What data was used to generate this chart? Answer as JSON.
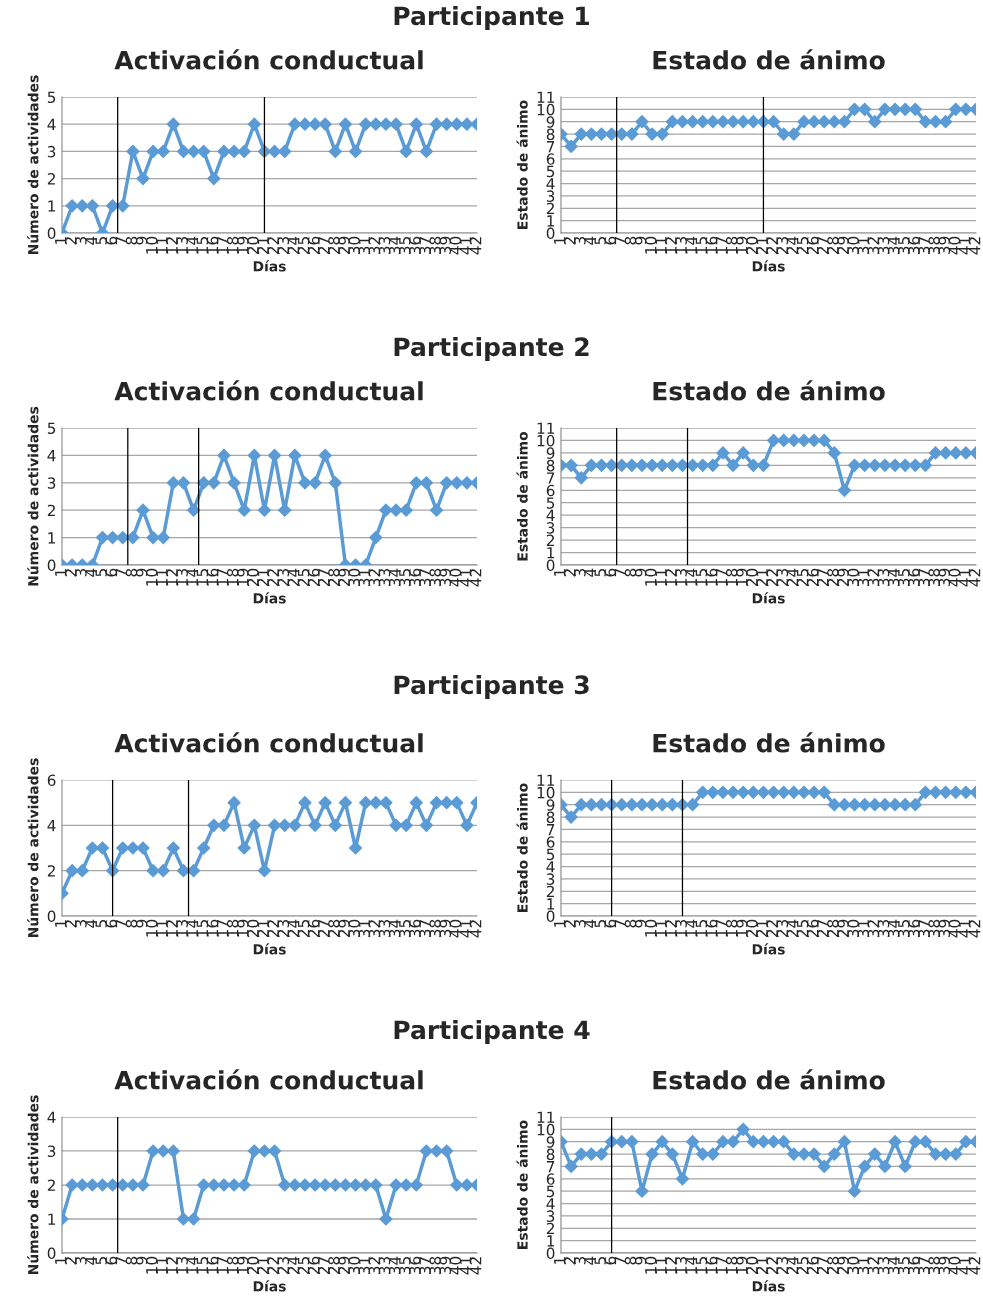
{
  "chart_data": [
    {
      "type": "line",
      "annotations": [
        "Participante 1"
      ],
      "title": "Activación conductual",
      "xlabel": "Días",
      "ylabel": "Número de actividades",
      "x": [
        1,
        2,
        3,
        4,
        5,
        6,
        7,
        8,
        9,
        10,
        11,
        12,
        13,
        14,
        15,
        16,
        17,
        18,
        19,
        20,
        21,
        22,
        23,
        24,
        25,
        26,
        27,
        28,
        29,
        30,
        31,
        32,
        33,
        34,
        35,
        36,
        37,
        38,
        39,
        40,
        41,
        42
      ],
      "xlim": [
        1,
        42
      ],
      "xticks": [
        1,
        2,
        3,
        4,
        5,
        6,
        7,
        8,
        9,
        10,
        11,
        12,
        13,
        14,
        15,
        16,
        17,
        18,
        19,
        20,
        21,
        22,
        23,
        24,
        25,
        26,
        27,
        28,
        29,
        30,
        31,
        32,
        33,
        34,
        35,
        36,
        37,
        38,
        39,
        40,
        41,
        42
      ],
      "ylim": [
        0,
        5
      ],
      "yticks": [
        0,
        1,
        2,
        3,
        4,
        5
      ],
      "grid": "y",
      "marker": "diamond",
      "line_style": "solid",
      "series": [
        {
          "color": "#5b9bd5",
          "values": [
            0,
            1,
            1,
            1,
            0,
            1,
            1,
            3,
            2,
            3,
            3,
            4,
            3,
            3,
            3,
            2,
            3,
            3,
            3,
            4,
            3,
            3,
            3,
            4,
            4,
            4,
            4,
            3,
            4,
            3,
            4,
            4,
            4,
            4,
            3,
            4,
            3,
            4,
            4,
            4,
            4,
            4
          ]
        }
      ],
      "ref_lines": [
        {
          "axis": "x",
          "value": 6.5,
          "color": "#000000"
        },
        {
          "axis": "x",
          "value": 21,
          "color": "#000000"
        }
      ]
    },
    {
      "type": "line",
      "title": "Estado de ánimo",
      "xlabel": "Días",
      "ylabel": "Estado de ánimo",
      "x": [
        1,
        2,
        3,
        4,
        5,
        6,
        7,
        8,
        9,
        10,
        11,
        12,
        13,
        14,
        15,
        16,
        17,
        18,
        19,
        20,
        21,
        22,
        23,
        24,
        25,
        26,
        27,
        28,
        29,
        30,
        31,
        32,
        33,
        34,
        35,
        36,
        37,
        38,
        39,
        40,
        41,
        42
      ],
      "xlim": [
        1,
        42
      ],
      "xticks": [
        1,
        2,
        3,
        4,
        5,
        6,
        7,
        8,
        9,
        10,
        11,
        12,
        13,
        14,
        15,
        16,
        17,
        18,
        19,
        20,
        21,
        22,
        23,
        24,
        25,
        26,
        27,
        28,
        29,
        30,
        31,
        32,
        33,
        34,
        35,
        36,
        37,
        38,
        39,
        40,
        41,
        42
      ],
      "ylim": [
        0,
        11
      ],
      "yticks": [
        0,
        1,
        2,
        3,
        4,
        5,
        6,
        7,
        8,
        9,
        10,
        11
      ],
      "grid": "y",
      "marker": "diamond",
      "line_style": "solid",
      "series": [
        {
          "color": "#5b9bd5",
          "values": [
            8,
            7,
            8,
            8,
            8,
            8,
            8,
            8,
            9,
            8,
            8,
            9,
            9,
            9,
            9,
            9,
            9,
            9,
            9,
            9,
            9,
            9,
            8,
            8,
            9,
            9,
            9,
            9,
            9,
            10,
            10,
            9,
            10,
            10,
            10,
            10,
            9,
            9,
            9,
            10,
            10,
            10
          ]
        }
      ],
      "ref_lines": [
        {
          "axis": "x",
          "value": 6.5,
          "color": "#000000"
        },
        {
          "axis": "x",
          "value": 21,
          "color": "#000000"
        }
      ]
    },
    {
      "type": "line",
      "annotations": [
        "Participante 2"
      ],
      "title": "Activación conductual",
      "xlabel": "Días",
      "ylabel": "Número de actividades",
      "x": [
        1,
        2,
        3,
        4,
        5,
        6,
        7,
        8,
        9,
        10,
        11,
        12,
        13,
        14,
        15,
        16,
        17,
        18,
        19,
        20,
        21,
        22,
        23,
        24,
        25,
        26,
        27,
        28,
        29,
        30,
        31,
        32,
        33,
        34,
        35,
        36,
        37,
        38,
        39,
        40,
        41,
        42
      ],
      "xlim": [
        1,
        42
      ],
      "xticks": [
        1,
        2,
        3,
        4,
        5,
        6,
        7,
        8,
        9,
        10,
        11,
        12,
        13,
        14,
        15,
        16,
        17,
        18,
        19,
        20,
        21,
        22,
        23,
        24,
        25,
        26,
        27,
        28,
        29,
        30,
        31,
        32,
        33,
        34,
        35,
        36,
        37,
        38,
        39,
        40,
        41,
        42
      ],
      "ylim": [
        0,
        5
      ],
      "yticks": [
        0,
        1,
        2,
        3,
        4,
        5
      ],
      "grid": "y",
      "marker": "diamond",
      "line_style": "solid",
      "series": [
        {
          "color": "#5b9bd5",
          "values": [
            0,
            0,
            0,
            0,
            1,
            1,
            1,
            1,
            2,
            1,
            1,
            3,
            3,
            2,
            3,
            3,
            4,
            3,
            2,
            4,
            2,
            4,
            2,
            4,
            3,
            3,
            4,
            3,
            0,
            0,
            0,
            1,
            2,
            2,
            2,
            3,
            3,
            2,
            3,
            3,
            3,
            3
          ]
        }
      ],
      "ref_lines": [
        {
          "axis": "x",
          "value": 7.5,
          "color": "#000000"
        },
        {
          "axis": "x",
          "value": 14.5,
          "color": "#000000"
        }
      ]
    },
    {
      "type": "line",
      "title": "Estado de ánimo",
      "xlabel": "Días",
      "ylabel": "Estado de ánimo",
      "x": [
        1,
        2,
        3,
        4,
        5,
        6,
        7,
        8,
        9,
        10,
        11,
        12,
        13,
        14,
        15,
        16,
        17,
        18,
        19,
        20,
        21,
        22,
        23,
        24,
        25,
        26,
        27,
        28,
        29,
        30,
        31,
        32,
        33,
        34,
        35,
        36,
        37,
        38,
        39,
        40,
        41,
        42
      ],
      "xlim": [
        1,
        42
      ],
      "xticks": [
        1,
        2,
        3,
        4,
        5,
        6,
        7,
        8,
        9,
        10,
        11,
        12,
        13,
        14,
        15,
        16,
        17,
        18,
        19,
        20,
        21,
        22,
        23,
        24,
        25,
        26,
        27,
        28,
        29,
        30,
        31,
        32,
        33,
        34,
        35,
        36,
        37,
        38,
        39,
        40,
        41,
        42
      ],
      "ylim": [
        0,
        11
      ],
      "yticks": [
        0,
        1,
        2,
        3,
        4,
        5,
        6,
        7,
        8,
        9,
        10,
        11
      ],
      "grid": "y",
      "marker": "diamond",
      "line_style": "solid",
      "series": [
        {
          "color": "#5b9bd5",
          "values": [
            8,
            8,
            7,
            8,
            8,
            8,
            8,
            8,
            8,
            8,
            8,
            8,
            8,
            8,
            8,
            8,
            9,
            8,
            9,
            8,
            8,
            10,
            10,
            10,
            10,
            10,
            10,
            9,
            6,
            8,
            8,
            8,
            8,
            8,
            8,
            8,
            8,
            9,
            9,
            9,
            9,
            9
          ]
        }
      ],
      "ref_lines": [
        {
          "axis": "x",
          "value": 6.5,
          "color": "#000000"
        },
        {
          "axis": "x",
          "value": 13.5,
          "color": "#000000"
        }
      ]
    },
    {
      "type": "line",
      "annotations": [
        "Participante 3"
      ],
      "title": "Activación conductual",
      "xlabel": "Días",
      "ylabel": "Número de actividades",
      "x": [
        1,
        2,
        3,
        4,
        5,
        6,
        7,
        8,
        9,
        10,
        11,
        12,
        13,
        14,
        15,
        16,
        17,
        18,
        19,
        20,
        21,
        22,
        23,
        24,
        25,
        26,
        27,
        28,
        29,
        30,
        31,
        32,
        33,
        34,
        35,
        36,
        37,
        38,
        39,
        40,
        41,
        42
      ],
      "xlim": [
        1,
        42
      ],
      "xticks": [
        1,
        2,
        3,
        4,
        5,
        6,
        7,
        8,
        9,
        10,
        11,
        12,
        13,
        14,
        15,
        16,
        17,
        18,
        19,
        20,
        21,
        22,
        23,
        24,
        25,
        26,
        27,
        28,
        29,
        30,
        31,
        32,
        33,
        34,
        35,
        36,
        37,
        38,
        39,
        40,
        41,
        42
      ],
      "ylim": [
        0,
        6
      ],
      "yticks": [
        0,
        2,
        4,
        6
      ],
      "grid": "y",
      "marker": "diamond",
      "line_style": "solid",
      "series": [
        {
          "color": "#5b9bd5",
          "values": [
            1,
            2,
            2,
            3,
            3,
            2,
            3,
            3,
            3,
            2,
            2,
            3,
            2,
            2,
            3,
            4,
            4,
            5,
            3,
            4,
            2,
            4,
            4,
            4,
            5,
            4,
            5,
            4,
            5,
            3,
            5,
            5,
            5,
            4,
            4,
            5,
            4,
            5,
            5,
            5,
            4,
            5
          ]
        }
      ],
      "ref_lines": [
        {
          "axis": "x",
          "value": 6,
          "color": "#000000"
        },
        {
          "axis": "x",
          "value": 13.5,
          "color": "#000000"
        }
      ]
    },
    {
      "type": "line",
      "title": "Estado de ánimo",
      "xlabel": "Días",
      "ylabel": "Estado de ánimo",
      "x": [
        1,
        2,
        3,
        4,
        5,
        6,
        7,
        8,
        9,
        10,
        11,
        12,
        13,
        14,
        15,
        16,
        17,
        18,
        19,
        20,
        21,
        22,
        23,
        24,
        25,
        26,
        27,
        28,
        29,
        30,
        31,
        32,
        33,
        34,
        35,
        36,
        37,
        38,
        39,
        40,
        41,
        42
      ],
      "xlim": [
        1,
        42
      ],
      "xticks": [
        1,
        2,
        3,
        4,
        5,
        6,
        7,
        8,
        9,
        10,
        11,
        12,
        13,
        14,
        15,
        16,
        17,
        18,
        19,
        20,
        21,
        22,
        23,
        24,
        25,
        26,
        27,
        28,
        29,
        30,
        31,
        32,
        33,
        34,
        35,
        36,
        37,
        38,
        39,
        40,
        41,
        42
      ],
      "ylim": [
        0,
        11
      ],
      "yticks": [
        0,
        1,
        2,
        3,
        4,
        5,
        6,
        7,
        8,
        9,
        10,
        11
      ],
      "grid": "y",
      "marker": "diamond",
      "line_style": "solid",
      "series": [
        {
          "color": "#5b9bd5",
          "values": [
            9,
            8,
            9,
            9,
            9,
            9,
            9,
            9,
            9,
            9,
            9,
            9,
            9,
            9,
            10,
            10,
            10,
            10,
            10,
            10,
            10,
            10,
            10,
            10,
            10,
            10,
            10,
            9,
            9,
            9,
            9,
            9,
            9,
            9,
            9,
            9,
            10,
            10,
            10,
            10,
            10,
            10
          ]
        }
      ],
      "ref_lines": [
        {
          "axis": "x",
          "value": 6,
          "color": "#000000"
        },
        {
          "axis": "x",
          "value": 13,
          "color": "#000000"
        }
      ]
    },
    {
      "type": "line",
      "annotations": [
        "Participante 4"
      ],
      "title": "Activación conductual",
      "xlabel": "Días",
      "ylabel": "Número de actividades",
      "x": [
        1,
        2,
        3,
        4,
        5,
        6,
        7,
        8,
        9,
        10,
        11,
        12,
        13,
        14,
        15,
        16,
        17,
        18,
        19,
        20,
        21,
        22,
        23,
        24,
        25,
        26,
        27,
        28,
        29,
        30,
        31,
        32,
        33,
        34,
        35,
        36,
        37,
        38,
        39,
        40,
        41,
        42
      ],
      "xlim": [
        1,
        42
      ],
      "xticks": [
        1,
        2,
        3,
        4,
        5,
        6,
        7,
        8,
        9,
        10,
        11,
        12,
        13,
        14,
        15,
        16,
        17,
        18,
        19,
        20,
        21,
        22,
        23,
        24,
        25,
        26,
        27,
        28,
        29,
        30,
        31,
        32,
        33,
        34,
        35,
        36,
        37,
        38,
        39,
        40,
        41,
        42
      ],
      "ylim": [
        0,
        4
      ],
      "yticks": [
        0,
        1,
        2,
        3,
        4
      ],
      "grid": "y",
      "marker": "diamond",
      "line_style": "solid",
      "series": [
        {
          "color": "#5b9bd5",
          "values": [
            1,
            2,
            2,
            2,
            2,
            2,
            2,
            2,
            2,
            3,
            3,
            3,
            1,
            1,
            2,
            2,
            2,
            2,
            2,
            3,
            3,
            3,
            2,
            2,
            2,
            2,
            2,
            2,
            2,
            2,
            2,
            2,
            1,
            2,
            2,
            2,
            3,
            3,
            3,
            2,
            2,
            2
          ]
        }
      ],
      "ref_lines": [
        {
          "axis": "x",
          "value": 6.5,
          "color": "#000000"
        }
      ]
    },
    {
      "type": "line",
      "title": "Estado de ánimo",
      "xlabel": "Días",
      "ylabel": "Estado de ánimo",
      "x": [
        1,
        2,
        3,
        4,
        5,
        6,
        7,
        8,
        9,
        10,
        11,
        12,
        13,
        14,
        15,
        16,
        17,
        18,
        19,
        20,
        21,
        22,
        23,
        24,
        25,
        26,
        27,
        28,
        29,
        30,
        31,
        32,
        33,
        34,
        35,
        36,
        37,
        38,
        39,
        40,
        41,
        42
      ],
      "xlim": [
        1,
        42
      ],
      "xticks": [
        1,
        2,
        3,
        4,
        5,
        6,
        7,
        8,
        9,
        10,
        11,
        12,
        13,
        14,
        15,
        16,
        17,
        18,
        19,
        20,
        21,
        22,
        23,
        24,
        25,
        26,
        27,
        28,
        29,
        30,
        31,
        32,
        33,
        34,
        35,
        36,
        37,
        38,
        39,
        40,
        41,
        42
      ],
      "ylim": [
        0,
        11
      ],
      "yticks": [
        0,
        1,
        2,
        3,
        4,
        5,
        6,
        7,
        8,
        9,
        10,
        11
      ],
      "grid": "y",
      "marker": "diamond",
      "line_style": "solid",
      "series": [
        {
          "color": "#5b9bd5",
          "values": [
            9,
            7,
            8,
            8,
            8,
            9,
            9,
            9,
            5,
            8,
            9,
            8,
            6,
            9,
            8,
            8,
            9,
            9,
            10,
            9,
            9,
            9,
            9,
            8,
            8,
            8,
            7,
            8,
            9,
            5,
            7,
            8,
            7,
            9,
            7,
            9,
            9,
            8,
            8,
            8,
            9,
            9
          ]
        }
      ],
      "ref_lines": [
        {
          "axis": "x",
          "value": 6,
          "color": "#000000"
        }
      ]
    }
  ]
}
